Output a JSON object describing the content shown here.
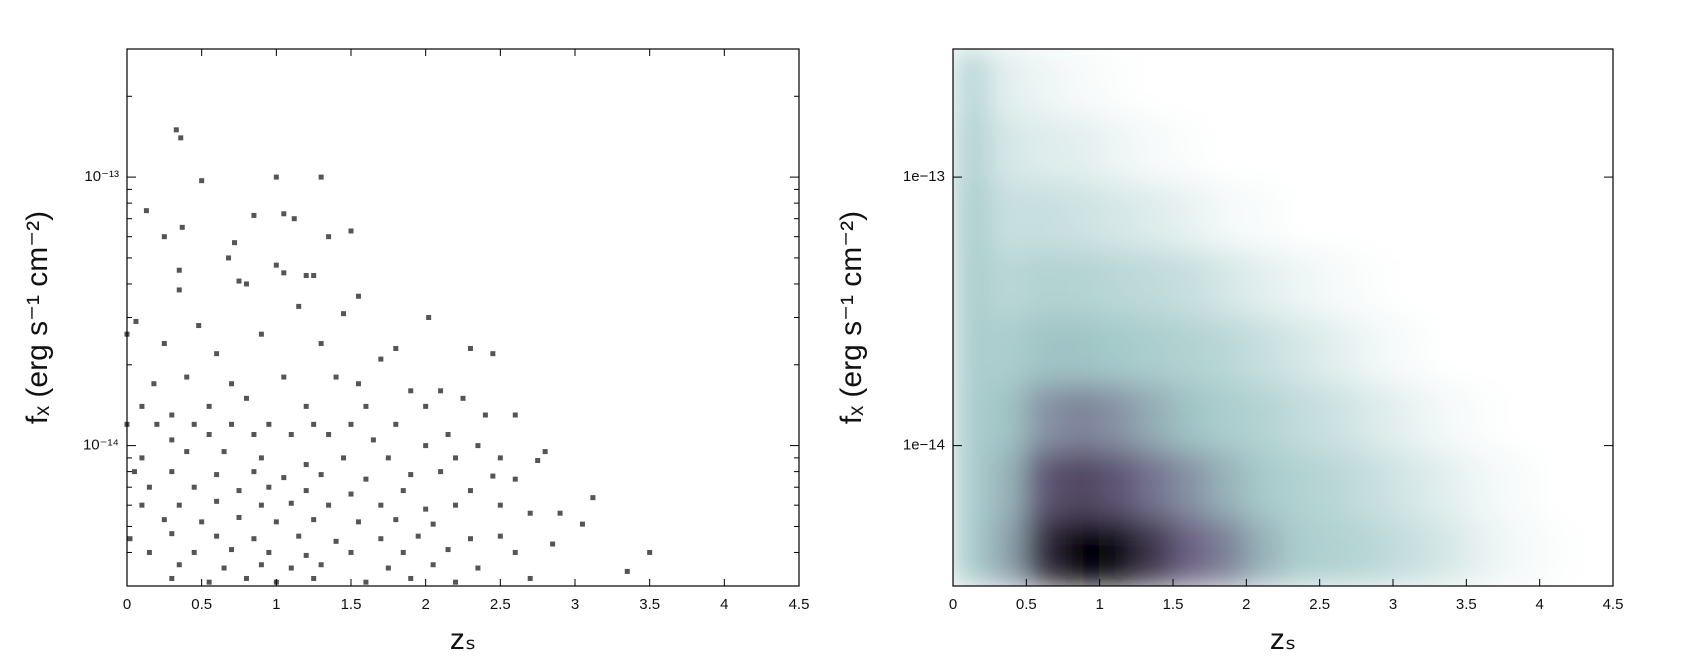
{
  "chart_data": [
    {
      "type": "scatter",
      "xlabel": "zₛ",
      "ylabel": "fₓ (erg s⁻¹ cm⁻²)",
      "color": "#555555",
      "log_y": true,
      "xlim": [
        0,
        4.5
      ],
      "xticks": [
        0,
        0.5,
        1,
        1.5,
        2,
        2.5,
        3,
        3.5,
        4,
        4.5
      ],
      "ylim": [
        3e-15,
        3e-13
      ],
      "yticks": [
        {
          "value": 1e-13,
          "label": "10⁻¹³"
        },
        {
          "value": 1e-14,
          "label": "10⁻¹⁴"
        }
      ],
      "yminorticks": [
        4e-15,
        5e-15,
        6e-15,
        7e-15,
        8e-15,
        9e-15,
        2e-14,
        3e-14,
        4e-14,
        5e-14,
        6e-14,
        7e-14,
        8e-14,
        9e-14,
        2e-13,
        3e-13
      ],
      "x": [
        0.33,
        0.36,
        0.5,
        1.0,
        1.3,
        0.13,
        0.85,
        1.05,
        1.12,
        0.37,
        0.25,
        0.72,
        1.5,
        1.35,
        0.68,
        0.35,
        1.0,
        1.05,
        1.2,
        1.25,
        0.75,
        0.35,
        0.8,
        0.06,
        0.0,
        0.48,
        1.15,
        1.55,
        1.45,
        2.02,
        0.25,
        0.6,
        0.9,
        1.3,
        1.7,
        1.8,
        2.3,
        2.45,
        0.18,
        0.4,
        0.7,
        1.05,
        1.4,
        1.55,
        1.9,
        2.1,
        0.1,
        0.3,
        0.55,
        0.8,
        1.2,
        1.6,
        2.0,
        2.25,
        2.4,
        2.6,
        0.0,
        0.2,
        0.45,
        0.7,
        0.95,
        1.25,
        1.5,
        1.8,
        2.15,
        0.3,
        0.55,
        0.85,
        1.1,
        1.35,
        1.65,
        2.0,
        2.35,
        2.8,
        0.1,
        0.4,
        0.65,
        0.9,
        1.2,
        1.45,
        1.75,
        2.2,
        2.5,
        2.75,
        0.05,
        0.3,
        0.6,
        0.85,
        1.05,
        1.3,
        1.6,
        1.9,
        2.1,
        2.45,
        2.6,
        0.15,
        0.45,
        0.75,
        0.95,
        1.2,
        1.5,
        1.85,
        2.3,
        3.12,
        0.1,
        0.35,
        0.6,
        0.9,
        1.1,
        1.35,
        1.7,
        2.0,
        2.2,
        2.5,
        2.7,
        2.9,
        0.25,
        0.5,
        0.75,
        1.0,
        1.25,
        1.55,
        1.8,
        2.05,
        3.05,
        0.02,
        0.3,
        0.6,
        0.85,
        1.15,
        1.4,
        1.7,
        1.95,
        2.3,
        2.5,
        2.85,
        0.15,
        0.45,
        0.7,
        0.95,
        1.2,
        1.5,
        1.85,
        2.15,
        2.6,
        3.5,
        0.35,
        0.65,
        0.9,
        1.1,
        1.3,
        1.75,
        2.05,
        2.35,
        3.35,
        0.3,
        0.55,
        0.8,
        1.0,
        1.25,
        1.6,
        1.9,
        2.2,
        2.7
      ],
      "values": [
        1.5e-13,
        1.4e-13,
        9.7e-14,
        1e-13,
        1e-13,
        7.5e-14,
        7.2e-14,
        7.3e-14,
        7e-14,
        6.5e-14,
        6e-14,
        5.7e-14,
        6.3e-14,
        6e-14,
        5e-14,
        4.5e-14,
        4.7e-14,
        4.4e-14,
        4.3e-14,
        4.3e-14,
        4.1e-14,
        3.8e-14,
        4e-14,
        2.9e-14,
        2.6e-14,
        2.8e-14,
        3.3e-14,
        3.6e-14,
        3.1e-14,
        3e-14,
        2.4e-14,
        2.2e-14,
        2.6e-14,
        2.4e-14,
        2.1e-14,
        2.3e-14,
        2.3e-14,
        2.2e-14,
        1.7e-14,
        1.8e-14,
        1.7e-14,
        1.8e-14,
        1.8e-14,
        1.7e-14,
        1.6e-14,
        1.6e-14,
        1.4e-14,
        1.3e-14,
        1.4e-14,
        1.5e-14,
        1.4e-14,
        1.4e-14,
        1.4e-14,
        1.5e-14,
        1.3e-14,
        1.3e-14,
        1.2e-14,
        1.2e-14,
        1.2e-14,
        1.2e-14,
        1.2e-14,
        1.2e-14,
        1.2e-14,
        1.2e-14,
        1.1e-14,
        1.05e-14,
        1.1e-14,
        1.1e-14,
        1.1e-14,
        1.1e-14,
        1.05e-14,
        1e-14,
        1e-14,
        9.5e-15,
        9e-15,
        9.5e-15,
        9.5e-15,
        9e-15,
        8.5e-15,
        9e-15,
        9e-15,
        9e-15,
        9e-15,
        8.8e-15,
        8e-15,
        8e-15,
        7.8e-15,
        8e-15,
        7.6e-15,
        7.8e-15,
        7.5e-15,
        7.8e-15,
        8e-15,
        7.7e-15,
        7.5e-15,
        7e-15,
        7e-15,
        6.8e-15,
        7e-15,
        6.8e-15,
        6.6e-15,
        6.8e-15,
        6.8e-15,
        6.4e-15,
        6e-15,
        6e-15,
        6.2e-15,
        6e-15,
        6.1e-15,
        6e-15,
        6e-15,
        5.8e-15,
        6e-15,
        6e-15,
        5.6e-15,
        5.6e-15,
        5.3e-15,
        5.2e-15,
        5.4e-15,
        5.2e-15,
        5.3e-15,
        5.2e-15,
        5.3e-15,
        5.1e-15,
        5.1e-15,
        4.5e-15,
        4.7e-15,
        4.6e-15,
        4.5e-15,
        4.6e-15,
        4.4e-15,
        4.5e-15,
        4.6e-15,
        4.5e-15,
        4.6e-15,
        4.3e-15,
        4e-15,
        4e-15,
        4.1e-15,
        4e-15,
        3.9e-15,
        4e-15,
        4e-15,
        4.1e-15,
        4e-15,
        4e-15,
        3.6e-15,
        3.5e-15,
        3.6e-15,
        3.5e-15,
        3.6e-15,
        3.5e-15,
        3.6e-15,
        3.5e-15,
        3.4e-15,
        3.2e-15,
        3.1e-15,
        3.2e-15,
        3.1e-15,
        3.2e-15,
        3.1e-15,
        3.2e-15,
        3.1e-15,
        3.2e-15
      ]
    },
    {
      "type": "heatmap",
      "xlabel": "zₛ",
      "ylabel": "fₓ (erg s⁻¹ cm⁻²)",
      "log_y": true,
      "colormap": [
        "#ffffff",
        "#a3c9c9",
        "#6a5d80",
        "#000000"
      ],
      "xlim": [
        0,
        4.5
      ],
      "xticks": [
        0,
        0.5,
        1,
        1.5,
        2,
        2.5,
        3,
        3.5,
        4,
        4.5
      ],
      "ylim": [
        3e-15,
        3e-13
      ],
      "yticks": [
        {
          "value": 1e-13,
          "label": "1e−13"
        },
        {
          "value": 1e-14,
          "label": "1e−14"
        }
      ],
      "xbins": [
        0,
        0.25,
        0.5,
        0.75,
        1,
        1.25,
        1.5,
        1.75,
        2,
        2.25,
        2.5,
        2.75,
        3,
        3.25,
        3.5,
        3.75,
        4,
        4.25,
        4.5
      ],
      "ybins": [
        3e-15,
        5.33e-15,
        9.49e-15,
        1.69e-14,
        3e-14,
        5.33e-14,
        9.49e-14,
        1.69e-13,
        3e-13
      ],
      "values": [
        [
          0.3,
          0.45,
          0.85,
          1,
          0.95,
          0.8,
          0.65,
          0.55,
          0.4,
          0.3,
          0.28,
          0.25,
          0.2,
          0.15,
          0.08,
          0.04,
          0.01,
          0
        ],
        [
          0.3,
          0.4,
          0.7,
          0.75,
          0.7,
          0.6,
          0.5,
          0.4,
          0.32,
          0.28,
          0.25,
          0.2,
          0.15,
          0.1,
          0.05,
          0.02,
          0,
          0
        ],
        [
          0.3,
          0.35,
          0.5,
          0.55,
          0.5,
          0.42,
          0.35,
          0.3,
          0.27,
          0.22,
          0.18,
          0.13,
          0.08,
          0.04,
          0.01,
          0,
          0,
          0
        ],
        [
          0.3,
          0.3,
          0.35,
          0.35,
          0.33,
          0.3,
          0.28,
          0.25,
          0.2,
          0.15,
          0.1,
          0.05,
          0.02,
          0,
          0,
          0,
          0,
          0
        ],
        [
          0.3,
          0.25,
          0.28,
          0.27,
          0.25,
          0.23,
          0.2,
          0.15,
          0.1,
          0.06,
          0.03,
          0.01,
          0,
          0,
          0,
          0,
          0,
          0
        ],
        [
          0.3,
          0.2,
          0.2,
          0.18,
          0.15,
          0.12,
          0.08,
          0.04,
          0.02,
          0,
          0,
          0,
          0,
          0,
          0,
          0,
          0,
          0
        ],
        [
          0.28,
          0.15,
          0.12,
          0.1,
          0.06,
          0.03,
          0.01,
          0,
          0,
          0,
          0,
          0,
          0,
          0,
          0,
          0,
          0,
          0
        ],
        [
          0.25,
          0.1,
          0.06,
          0.03,
          0.01,
          0,
          0,
          0,
          0,
          0,
          0,
          0,
          0,
          0,
          0,
          0,
          0,
          0
        ]
      ]
    }
  ]
}
